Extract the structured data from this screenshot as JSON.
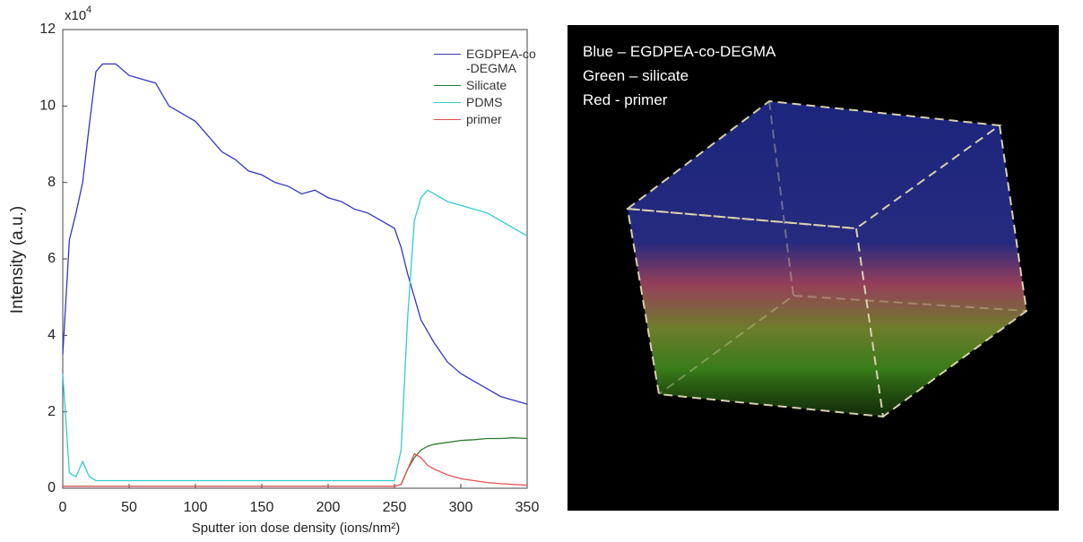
{
  "chart_data": {
    "type": "line",
    "ylabel": "Intensity (a.u.)",
    "xlabel": "Sputter ion dose density (ions/nm²)",
    "y_multiplier": "x10",
    "y_multiplier_exp": "4",
    "xlim": [
      0,
      350
    ],
    "ylim": [
      0,
      12
    ],
    "xticks": [
      0,
      50,
      100,
      150,
      200,
      250,
      300,
      350
    ],
    "yticks": [
      0,
      2,
      4,
      6,
      8,
      10,
      12
    ],
    "x": [
      0,
      5,
      10,
      15,
      20,
      25,
      30,
      40,
      50,
      60,
      70,
      80,
      90,
      100,
      110,
      120,
      130,
      140,
      150,
      160,
      170,
      180,
      190,
      200,
      210,
      220,
      230,
      240,
      250,
      255,
      260,
      265,
      270,
      275,
      280,
      290,
      300,
      310,
      320,
      330,
      340,
      350
    ],
    "series": [
      {
        "name": "EGDPEA-co\n-DEGMA",
        "color": "#3535c8",
        "values": [
          3.5,
          6.5,
          7.2,
          8.0,
          9.5,
          10.9,
          11.1,
          11.1,
          10.8,
          10.7,
          10.6,
          10.0,
          9.8,
          9.6,
          9.2,
          8.8,
          8.6,
          8.3,
          8.2,
          8.0,
          7.9,
          7.7,
          7.8,
          7.6,
          7.5,
          7.3,
          7.2,
          7.0,
          6.8,
          6.3,
          5.6,
          5.0,
          4.4,
          4.1,
          3.8,
          3.3,
          3.0,
          2.8,
          2.6,
          2.4,
          2.3,
          2.2
        ]
      },
      {
        "name": "Silicate",
        "color": "#2e7d32",
        "values": [
          0.05,
          0.05,
          0.05,
          0.05,
          0.05,
          0.05,
          0.05,
          0.05,
          0.05,
          0.05,
          0.05,
          0.05,
          0.05,
          0.05,
          0.05,
          0.05,
          0.05,
          0.05,
          0.05,
          0.05,
          0.05,
          0.05,
          0.05,
          0.05,
          0.05,
          0.05,
          0.05,
          0.05,
          0.05,
          0.1,
          0.5,
          0.8,
          1.0,
          1.1,
          1.15,
          1.2,
          1.25,
          1.27,
          1.3,
          1.3,
          1.32,
          1.3
        ]
      },
      {
        "name": "PDMS",
        "color": "#33cccc",
        "values": [
          3.0,
          0.4,
          0.3,
          0.7,
          0.3,
          0.2,
          0.2,
          0.2,
          0.2,
          0.2,
          0.2,
          0.2,
          0.2,
          0.2,
          0.2,
          0.2,
          0.2,
          0.2,
          0.2,
          0.2,
          0.2,
          0.2,
          0.2,
          0.2,
          0.2,
          0.2,
          0.2,
          0.2,
          0.2,
          1.0,
          4.5,
          7.0,
          7.6,
          7.8,
          7.7,
          7.5,
          7.4,
          7.3,
          7.2,
          7.0,
          6.8,
          6.6
        ]
      },
      {
        "name": "primer",
        "color": "#e05050",
        "values": [
          0.05,
          0.05,
          0.05,
          0.05,
          0.05,
          0.05,
          0.05,
          0.05,
          0.05,
          0.05,
          0.05,
          0.05,
          0.05,
          0.05,
          0.05,
          0.05,
          0.05,
          0.05,
          0.05,
          0.05,
          0.05,
          0.05,
          0.05,
          0.05,
          0.05,
          0.05,
          0.05,
          0.05,
          0.05,
          0.1,
          0.5,
          0.9,
          0.8,
          0.6,
          0.5,
          0.35,
          0.25,
          0.2,
          0.15,
          0.12,
          0.1,
          0.08
        ]
      }
    ],
    "legend": "upper right"
  },
  "image": {
    "annotations": [
      "Blue – EGDPEA-co-DEGMA",
      "Green – silicate",
      "Red - primer"
    ]
  }
}
